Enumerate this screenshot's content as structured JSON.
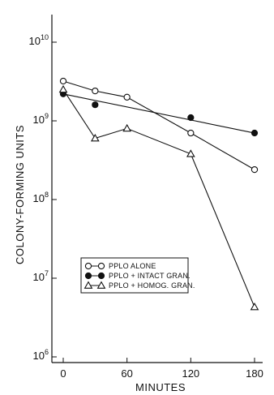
{
  "chart_data": {
    "type": "line",
    "title": "",
    "xlabel": "MINUTES",
    "ylabel": "COLONY-FORMING UNITS",
    "xlim": [
      -5,
      190
    ],
    "ylim": [
      1000000,
      100000000000
    ],
    "yscale": "log",
    "grid": false,
    "legend_position": "center-left",
    "x_ticks": [
      0,
      60,
      120,
      180
    ],
    "x_tick_labels": [
      "0",
      "60",
      "120",
      "180"
    ],
    "y_ticks": [
      1000000,
      10000000,
      100000000,
      1000000000,
      10000000000
    ],
    "y_tick_labels": [
      {
        "base": "10",
        "exp": "6"
      },
      {
        "base": "10",
        "exp": "7"
      },
      {
        "base": "10",
        "exp": "8"
      },
      {
        "base": "10",
        "exp": "9"
      },
      {
        "base": "10",
        "exp": "10"
      }
    ],
    "series": [
      {
        "name": "PPLO ALONE",
        "marker": "open-circle",
        "x": [
          0,
          30,
          60,
          120,
          180
        ],
        "y": [
          3200000000,
          2400000000,
          2000000000,
          700000000,
          240000000
        ]
      },
      {
        "name": "PPLO + INTACT GRAN.",
        "marker": "filled-circle",
        "x": [
          0,
          30,
          60,
          120,
          180
        ],
        "y": [
          2200000000,
          1600000000,
          1400000000,
          1100000000,
          700000000
        ],
        "points_only_x": [
          0,
          30,
          120
        ]
      },
      {
        "name": "PPLO + HOMOG. GRAN.",
        "marker": "open-triangle",
        "x": [
          0,
          30,
          60,
          120,
          180
        ],
        "y": [
          2500000000,
          600000000,
          800000000,
          380000000,
          4300000
        ]
      }
    ]
  },
  "colors": {
    "ink": "#111111",
    "background": "#ffffff"
  }
}
